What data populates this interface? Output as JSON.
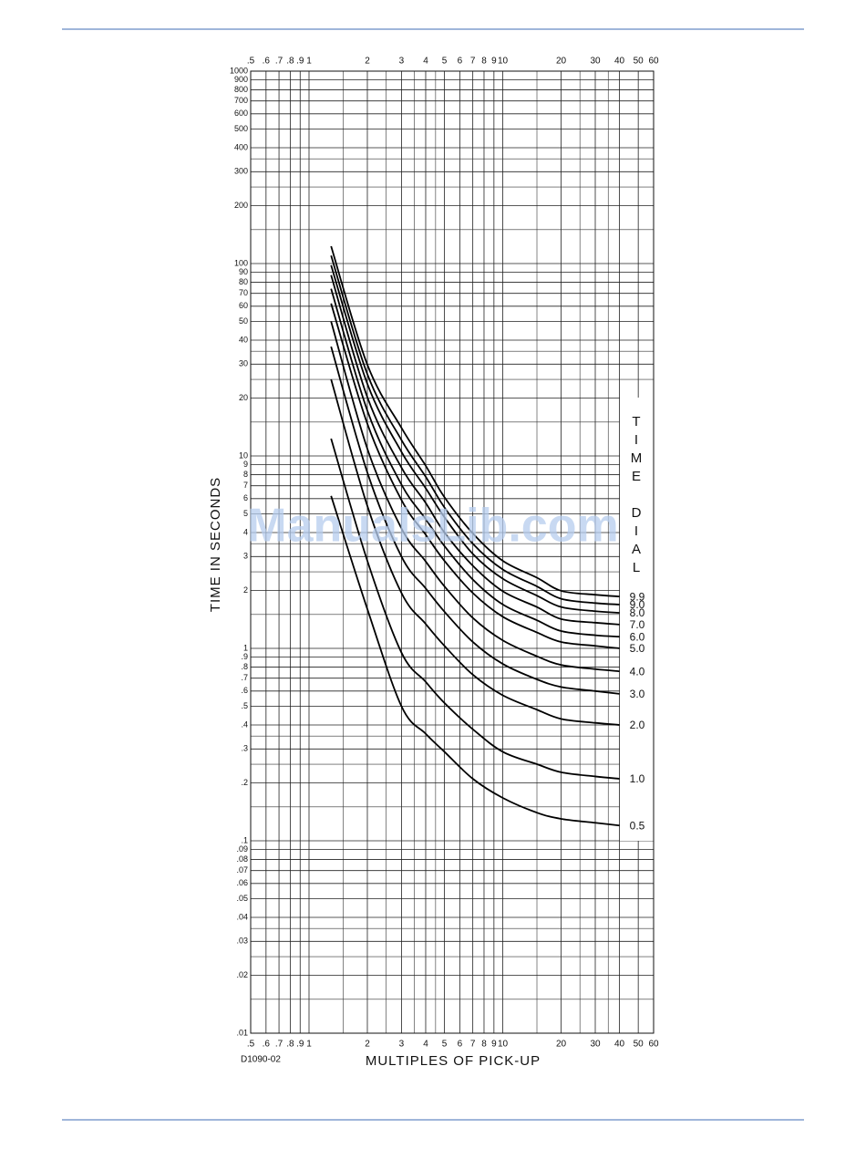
{
  "chart_data": {
    "type": "line",
    "x_label": "MULTIPLES OF PICK-UP",
    "y_label": "TIME IN SECONDS",
    "figure_id": "D1090-02",
    "legend_title": "TIME DIAL",
    "watermark": "ManualsLib.com",
    "log_x": true,
    "log_y": true,
    "grid": true,
    "xlim": [
      0.5,
      60
    ],
    "ylim": [
      0.01,
      1000
    ],
    "xticks": [
      {
        "value": 0.5,
        "label": ".5"
      },
      {
        "value": 0.6,
        "label": ".6"
      },
      {
        "value": 0.7,
        "label": ".7"
      },
      {
        "value": 0.8,
        "label": ".8"
      },
      {
        "value": 0.9,
        "label": ".9"
      },
      1,
      2,
      3,
      4,
      5,
      6,
      7,
      8,
      9,
      10,
      20,
      30,
      40,
      50,
      60
    ],
    "xminor": [
      1.5,
      2.5,
      3.5,
      4.5,
      15,
      25,
      35
    ],
    "yticks": [
      1000,
      900,
      800,
      700,
      600,
      500,
      400,
      300,
      200,
      100,
      90,
      80,
      70,
      60,
      50,
      40,
      30,
      20,
      10,
      9,
      8,
      7,
      6,
      5,
      4,
      3,
      2,
      1,
      {
        "value": 0.9,
        "label": ".9"
      },
      {
        "value": 0.8,
        "label": ".8"
      },
      {
        "value": 0.7,
        "label": ".7"
      },
      {
        "value": 0.6,
        "label": ".6"
      },
      {
        "value": 0.5,
        "label": ".5"
      },
      {
        "value": 0.4,
        "label": ".4"
      },
      {
        "value": 0.3,
        "label": ".3"
      },
      {
        "value": 0.2,
        "label": ".2"
      },
      {
        "value": 0.1,
        "label": ".1"
      },
      {
        "value": 0.09,
        "label": ".09"
      },
      {
        "value": 0.08,
        "label": ".08"
      },
      {
        "value": 0.07,
        "label": ".07"
      },
      {
        "value": 0.06,
        "label": ".06"
      },
      {
        "value": 0.05,
        "label": ".05"
      },
      {
        "value": 0.04,
        "label": ".04"
      },
      {
        "value": 0.03,
        "label": ".03"
      },
      {
        "value": 0.02,
        "label": ".02"
      },
      {
        "value": 0.01,
        "label": ".01"
      }
    ],
    "yminor": [
      350,
      250,
      150,
      35,
      25,
      15,
      3.5,
      2.5,
      1.5,
      0.35,
      0.25,
      0.15,
      0.035,
      0.025,
      0.015
    ],
    "x": [
      1.3,
      2,
      3,
      4,
      5,
      7,
      10,
      15,
      20,
      30,
      40
    ],
    "series": [
      {
        "name": "0.5",
        "color": "#000000",
        "values": [
          6.2,
          1.6,
          0.5,
          0.36,
          0.29,
          0.21,
          0.167,
          0.14,
          0.13,
          0.124,
          0.12
        ]
      },
      {
        "name": "1.0",
        "color": "#000000",
        "values": [
          12.3,
          2.85,
          0.95,
          0.67,
          0.52,
          0.38,
          0.29,
          0.25,
          0.227,
          0.216,
          0.21
        ]
      },
      {
        "name": "2.0",
        "color": "#000000",
        "values": [
          25,
          5.5,
          1.94,
          1.34,
          1.03,
          0.73,
          0.57,
          0.48,
          0.43,
          0.41,
          0.4
        ]
      },
      {
        "name": "3.0",
        "color": "#000000",
        "values": [
          37,
          8.2,
          3.0,
          2.05,
          1.55,
          1.08,
          0.83,
          0.69,
          0.63,
          0.6,
          0.58
        ]
      },
      {
        "name": "4.0",
        "color": "#000000",
        "values": [
          50,
          10.9,
          4.2,
          2.83,
          2.1,
          1.44,
          1.1,
          0.91,
          0.82,
          0.78,
          0.76
        ]
      },
      {
        "name": "5.0",
        "color": "#000000",
        "values": [
          62,
          14.7,
          5.9,
          3.9,
          2.85,
          1.94,
          1.46,
          1.21,
          1.08,
          1.03,
          1.0
        ]
      },
      {
        "name": "6.0",
        "color": "#000000",
        "values": [
          74,
          17.2,
          7.1,
          4.7,
          3.4,
          2.28,
          1.69,
          1.4,
          1.23,
          1.17,
          1.15
        ]
      },
      {
        "name": "7.0",
        "color": "#000000",
        "values": [
          87,
          20.2,
          8.7,
          5.7,
          4.0,
          2.69,
          1.98,
          1.64,
          1.42,
          1.36,
          1.33
        ]
      },
      {
        "name": "8.0",
        "color": "#000000",
        "values": [
          98,
          23.7,
          10.5,
          6.8,
          4.8,
          3.1,
          2.3,
          1.88,
          1.64,
          1.56,
          1.53
        ]
      },
      {
        "name": "9.0",
        "color": "#000000",
        "values": [
          110,
          26.6,
          12.1,
          7.8,
          5.4,
          3.5,
          2.57,
          2.1,
          1.81,
          1.72,
          1.69
        ]
      },
      {
        "name": "9.9",
        "color": "#000000",
        "values": [
          123,
          29.8,
          14.0,
          8.9,
          6.1,
          3.96,
          2.85,
          2.33,
          1.99,
          1.9,
          1.86
        ]
      }
    ]
  }
}
